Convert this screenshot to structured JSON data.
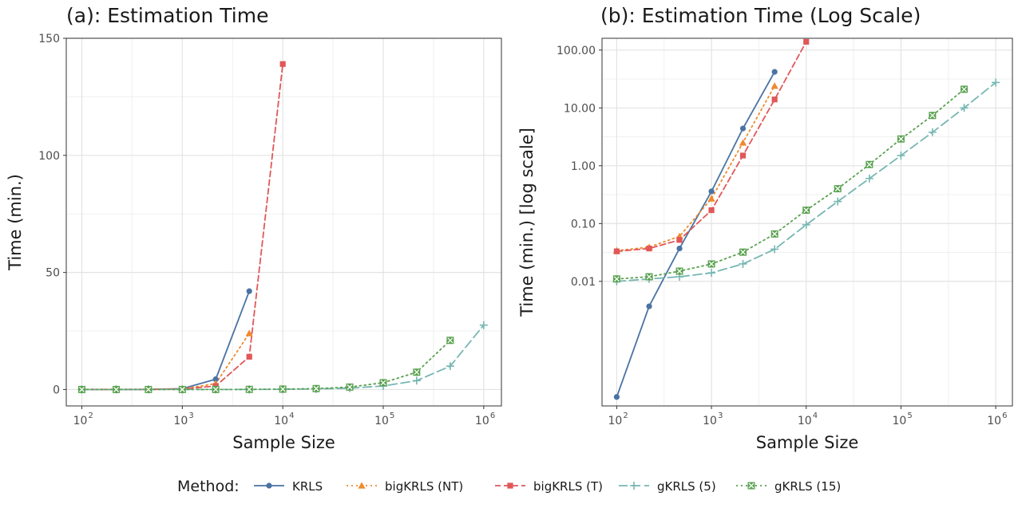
{
  "chart_data": [
    {
      "type": "line",
      "title": "(a): Estimation Time",
      "xlabel": "Sample Size",
      "ylabel": "Time (min.)",
      "xscale": "log10",
      "yscale": "linear",
      "xlim": [
        70,
        1500000
      ],
      "ylim": [
        -7,
        150
      ],
      "xticks": [
        {
          "base": "10",
          "exp": "2",
          "value": 100
        },
        {
          "base": "10",
          "exp": "3",
          "value": 1000
        },
        {
          "base": "10",
          "exp": "4",
          "value": 10000
        },
        {
          "base": "10",
          "exp": "5",
          "value": 100000
        },
        {
          "base": "10",
          "exp": "6",
          "value": 1000000
        }
      ],
      "yticks": [
        {
          "label": "0",
          "value": 0
        },
        {
          "label": "50",
          "value": 50
        },
        {
          "label": "100",
          "value": 100
        },
        {
          "label": "150",
          "value": 150
        }
      ],
      "grid": true,
      "series": [
        {
          "name": "KRLS",
          "x": [
            100,
            220,
            460,
            1000,
            2150,
            4640
          ],
          "y": [
            0.0001,
            0.0037,
            0.037,
            0.36,
            4.4,
            42
          ]
        },
        {
          "name": "bigKRLS (NT)",
          "x": [
            100,
            220,
            460,
            1000,
            2150,
            4640
          ],
          "y": [
            0.034,
            0.039,
            0.06,
            0.27,
            2.5,
            24
          ]
        },
        {
          "name": "bigKRLS (T)",
          "x": [
            100,
            220,
            460,
            1000,
            2150,
            4640,
            10000
          ],
          "y": [
            0.033,
            0.037,
            0.052,
            0.17,
            1.5,
            14,
            139
          ]
        },
        {
          "name": "gKRLS (5)",
          "x": [
            100,
            220,
            460,
            1000,
            2150,
            4640,
            10000,
            21500,
            46400,
            100000,
            215000,
            464000,
            1000000
          ],
          "y": [
            0.01,
            0.011,
            0.012,
            0.014,
            0.02,
            0.036,
            0.095,
            0.24,
            0.6,
            1.5,
            3.8,
            10,
            27.5
          ]
        },
        {
          "name": "gKRLS (15)",
          "x": [
            100,
            220,
            460,
            1000,
            2150,
            4640,
            10000,
            21500,
            46400,
            100000,
            215000,
            464000
          ],
          "y": [
            0.011,
            0.012,
            0.015,
            0.02,
            0.032,
            0.066,
            0.17,
            0.4,
            1.05,
            2.9,
            7.4,
            21
          ]
        }
      ]
    },
    {
      "type": "line",
      "title": "(b): Estimation Time (Log Scale)",
      "xlabel": "Sample Size",
      "ylabel": "Time (min.) [log scale]",
      "xscale": "log10",
      "yscale": "log10",
      "xlim": [
        70,
        1500000
      ],
      "ylim": [
        7e-05,
        160
      ],
      "xticks": [
        {
          "base": "10",
          "exp": "2",
          "value": 100
        },
        {
          "base": "10",
          "exp": "3",
          "value": 1000
        },
        {
          "base": "10",
          "exp": "4",
          "value": 10000
        },
        {
          "base": "10",
          "exp": "5",
          "value": 100000
        },
        {
          "base": "10",
          "exp": "6",
          "value": 1000000
        }
      ],
      "yticks": [
        {
          "label": "0.01",
          "value": 0.01
        },
        {
          "label": "0.10",
          "value": 0.1
        },
        {
          "label": "1.00",
          "value": 1
        },
        {
          "label": "10.00",
          "value": 10
        },
        {
          "label": "100.00",
          "value": 100
        }
      ],
      "grid": true,
      "series": [
        {
          "name": "KRLS",
          "x": [
            100,
            220,
            460,
            1000,
            2150,
            4640
          ],
          "y": [
            0.0001,
            0.0037,
            0.037,
            0.36,
            4.4,
            42
          ]
        },
        {
          "name": "bigKRLS (NT)",
          "x": [
            100,
            220,
            460,
            1000,
            2150,
            4640
          ],
          "y": [
            0.034,
            0.039,
            0.06,
            0.27,
            2.5,
            24
          ]
        },
        {
          "name": "bigKRLS (T)",
          "x": [
            100,
            220,
            460,
            1000,
            2150,
            4640,
            10000
          ],
          "y": [
            0.033,
            0.037,
            0.052,
            0.17,
            1.5,
            14,
            139
          ]
        },
        {
          "name": "gKRLS (5)",
          "x": [
            100,
            220,
            460,
            1000,
            2150,
            4640,
            10000,
            21500,
            46400,
            100000,
            215000,
            464000,
            1000000
          ],
          "y": [
            0.01,
            0.011,
            0.012,
            0.014,
            0.02,
            0.036,
            0.095,
            0.24,
            0.6,
            1.5,
            3.8,
            10,
            27.5
          ]
        },
        {
          "name": "gKRLS (15)",
          "x": [
            100,
            220,
            460,
            1000,
            2150,
            4640,
            10000,
            21500,
            46400,
            100000,
            215000,
            464000
          ],
          "y": [
            0.011,
            0.012,
            0.015,
            0.02,
            0.032,
            0.066,
            0.17,
            0.4,
            1.05,
            2.9,
            7.4,
            21
          ]
        }
      ]
    }
  ],
  "legend": {
    "title": "Method:",
    "position": "bottom",
    "entries": [
      {
        "name": "KRLS",
        "color": "#4a73a3",
        "marker": "circle",
        "dash": "solid"
      },
      {
        "name": "bigKRLS (NT)",
        "color": "#ef8a2d",
        "marker": "triangle",
        "dash": "dotted"
      },
      {
        "name": "bigKRLS (T)",
        "color": "#e15759",
        "marker": "square",
        "dash": "dashed"
      },
      {
        "name": "gKRLS (5)",
        "color": "#76b7b2",
        "marker": "plus",
        "dash": "longdash"
      },
      {
        "name": "gKRLS (15)",
        "color": "#59a14f",
        "marker": "boxed-x",
        "dash": "dotted"
      }
    ]
  }
}
